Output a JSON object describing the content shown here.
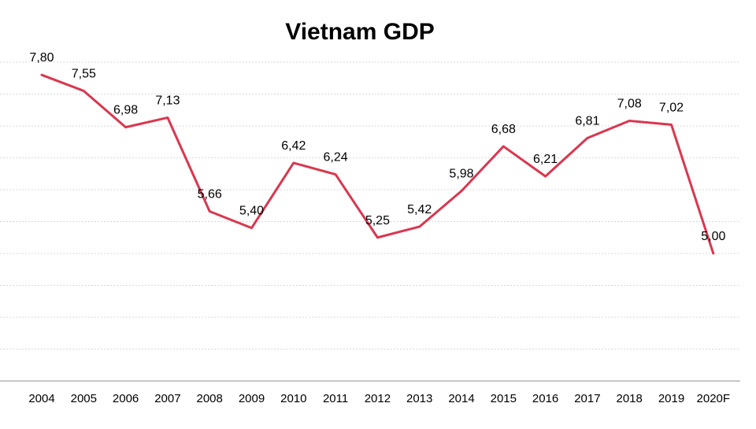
{
  "chart_data": {
    "type": "line",
    "title": "Vietnam GDP",
    "xlabel": "",
    "ylabel": "",
    "categories": [
      "2004",
      "2005",
      "2006",
      "2007",
      "2008",
      "2009",
      "2010",
      "2011",
      "2012",
      "2013",
      "2014",
      "2015",
      "2016",
      "2017",
      "2018",
      "2019",
      "2020F"
    ],
    "series": [
      {
        "color": "#d9374f",
        "values": [
          7.8,
          7.55,
          6.98,
          7.13,
          5.66,
          5.4,
          6.42,
          6.24,
          5.25,
          5.42,
          5.98,
          6.68,
          6.21,
          6.81,
          7.08,
          7.02,
          5.0
        ],
        "labels": [
          "7,80",
          "7,55",
          "6,98",
          "7,13",
          "5,66",
          "5,40",
          "6,42",
          "6,24",
          "5,25",
          "5,42",
          "5,98",
          "6,68",
          "6,21",
          "6,81",
          "7,08",
          "7,02",
          "5,00"
        ]
      }
    ],
    "ylim": [
      3.0,
      8.0
    ],
    "grid": true,
    "legend": "none"
  }
}
